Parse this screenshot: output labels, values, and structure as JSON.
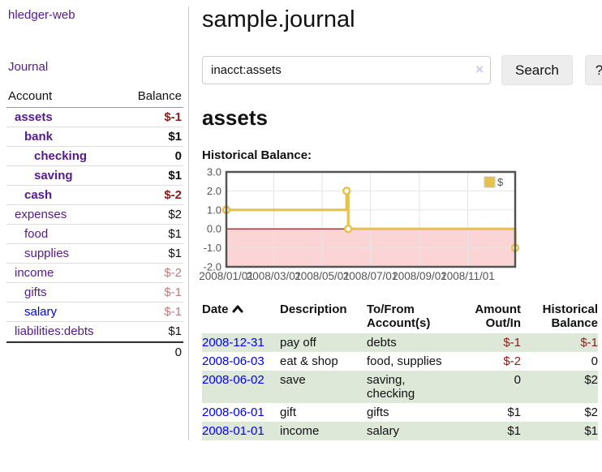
{
  "app": {
    "brand": "hledger-web"
  },
  "nav": {
    "journal": "Journal"
  },
  "sidebar": {
    "header": {
      "account": "Account",
      "balance": "Balance"
    },
    "accounts": [
      {
        "name": "assets",
        "balance": "$-1",
        "level": 1,
        "bold": true,
        "neg": "strong"
      },
      {
        "name": "bank",
        "balance": "$1",
        "level": 2,
        "bold": true,
        "neg": null
      },
      {
        "name": "checking",
        "balance": "0",
        "level": 3,
        "bold": true,
        "neg": null
      },
      {
        "name": "saving",
        "balance": "$1",
        "level": 3,
        "bold": true,
        "neg": null
      },
      {
        "name": "cash",
        "balance": "$-2",
        "level": 2,
        "bold": true,
        "neg": "strong"
      },
      {
        "name": "expenses",
        "balance": "$2",
        "level": 1,
        "bold": false,
        "neg": null
      },
      {
        "name": "food",
        "balance": "$1",
        "level": 2,
        "bold": false,
        "neg": null
      },
      {
        "name": "supplies",
        "balance": "$1",
        "level": 2,
        "bold": false,
        "neg": null
      },
      {
        "name": "income",
        "balance": "$-2",
        "level": 1,
        "bold": false,
        "neg": "soft"
      },
      {
        "name": "gifts",
        "balance": "$-1",
        "level": 2,
        "bold": false,
        "neg": "soft"
      },
      {
        "name": "salary",
        "balance": "$-1",
        "level": 2,
        "bold": false,
        "neg": "soft",
        "blue": true
      },
      {
        "name": "liabilities:debts",
        "balance": "$1",
        "level": 1,
        "bold": false,
        "neg": null
      }
    ],
    "total": "0"
  },
  "header": {
    "title": "sample.journal"
  },
  "search": {
    "value": "inacct:assets",
    "clear_icon": "×",
    "button": "Search",
    "help_button": "?"
  },
  "account_page": {
    "heading": "assets",
    "chart_label": "Historical Balance:"
  },
  "chart_data": {
    "type": "line",
    "step": true,
    "series": [
      {
        "name": "$",
        "x": [
          "2008-01-01",
          "2008-06-01",
          "2008-06-03",
          "2008-12-31"
        ],
        "values": [
          1,
          2,
          0,
          -1
        ]
      }
    ],
    "xlim": [
      "2008-01-01",
      "2008-12-31"
    ],
    "ylim": [
      -2,
      3
    ],
    "y_ticks": [
      3.0,
      2.0,
      1.0,
      0.0,
      -1.0,
      -2.0
    ],
    "x_ticks": [
      "2008/01/01",
      "2008/03/01",
      "2008/05/01",
      "2008/07/01",
      "2008/09/01",
      "2008/11/01"
    ],
    "legend": {
      "label": "$",
      "position": "top-right"
    },
    "colors": {
      "line": "#e6c14e",
      "marker_fill": "#ffffff",
      "negative_region": "#fbd5d5",
      "zero_line": "#8b0000",
      "grid": "#e6e6e6",
      "border": "#545454",
      "tick_text": "#545454"
    },
    "title": "",
    "xlabel": "",
    "ylabel": ""
  },
  "register": {
    "columns": [
      {
        "line1": "Date",
        "line2": "",
        "sort": "asc",
        "align": "left"
      },
      {
        "line1": "Description",
        "line2": "",
        "align": "left"
      },
      {
        "line1": "To/From",
        "line2": "Account(s)",
        "align": "left"
      },
      {
        "line1": "Amount",
        "line2": "Out/In",
        "align": "right"
      },
      {
        "line1": "Historical",
        "line2": "Balance",
        "align": "right"
      }
    ],
    "rows": [
      {
        "date": "2008-12-31",
        "description": "pay off",
        "accounts": "debts",
        "amount": "$-1",
        "balance": "$-1"
      },
      {
        "date": "2008-06-03",
        "description": "eat & shop",
        "accounts": "food, supplies",
        "amount": "$-2",
        "balance": "0"
      },
      {
        "date": "2008-06-02",
        "description": "save",
        "accounts": "saving, checking",
        "amount": "0",
        "balance": "$2"
      },
      {
        "date": "2008-06-01",
        "description": "gift",
        "accounts": "gifts",
        "amount": "$1",
        "balance": "$2"
      },
      {
        "date": "2008-01-01",
        "description": "income",
        "accounts": "salary",
        "amount": "$1",
        "balance": "$1"
      }
    ]
  }
}
